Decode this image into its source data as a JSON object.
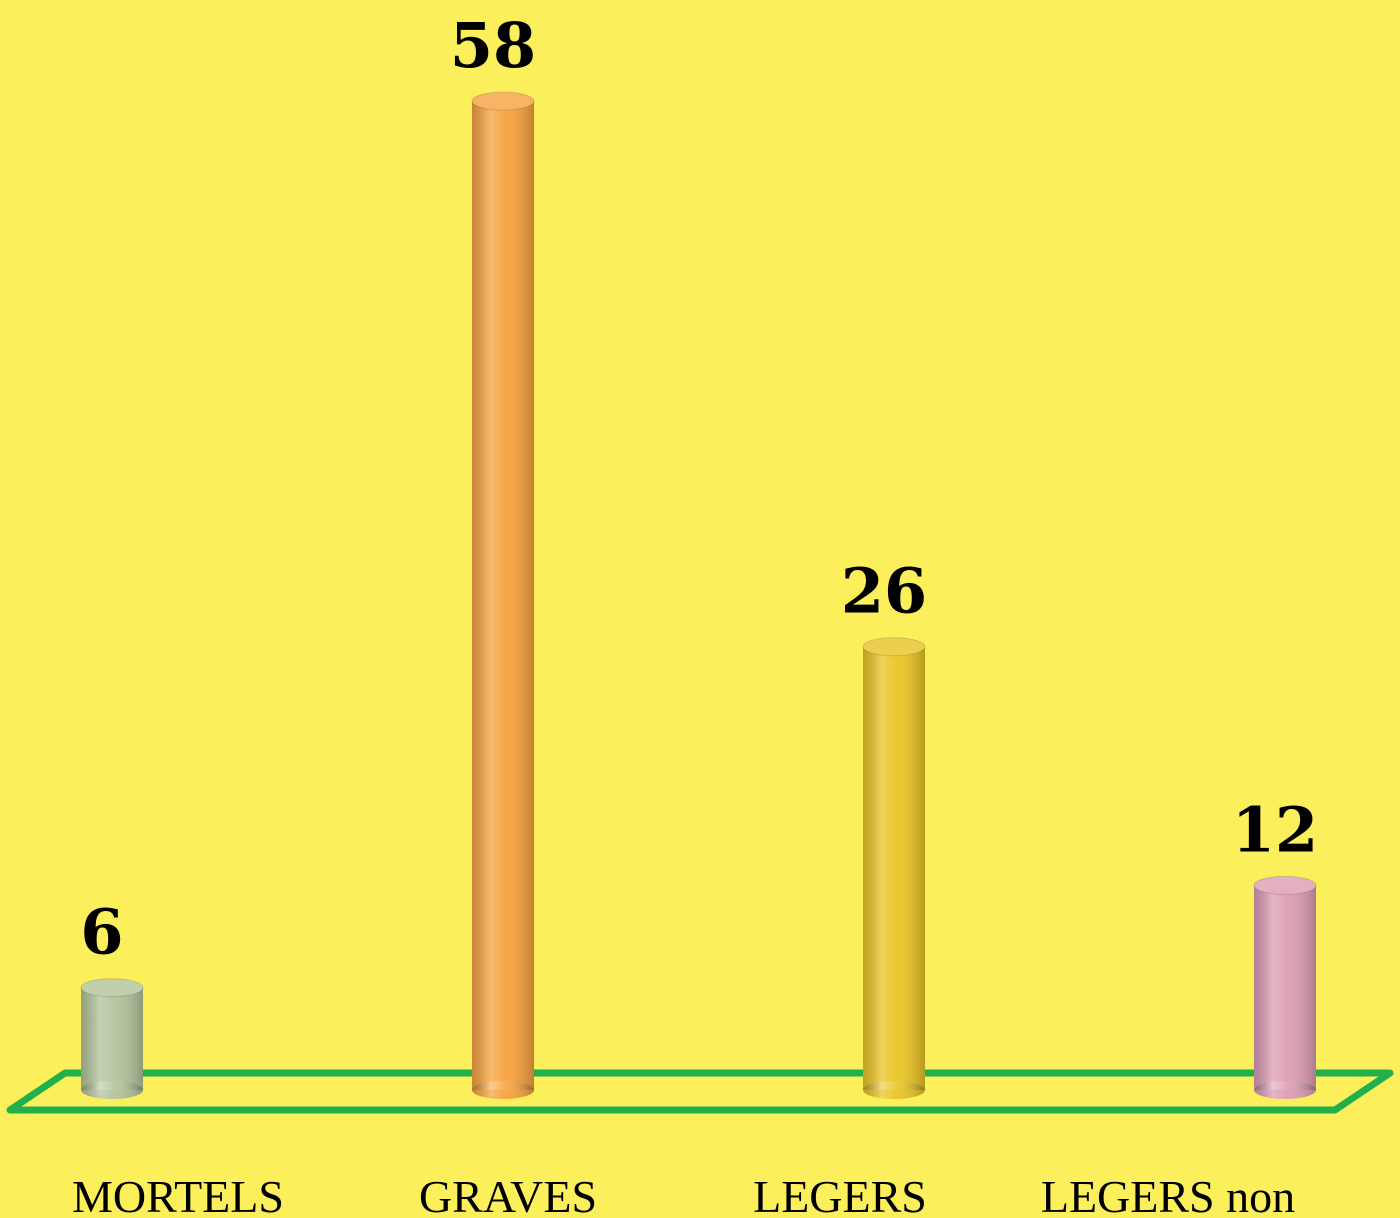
{
  "chart_data": {
    "type": "bar",
    "categories": [
      "MORTELS",
      "GRAVES",
      "LEGERS",
      "LEGERS non"
    ],
    "values": [
      6,
      58,
      26,
      12
    ],
    "colors": [
      "#b3c39a",
      "#f7a23e",
      "#e9c425",
      "#dc9cb4"
    ]
  }
}
